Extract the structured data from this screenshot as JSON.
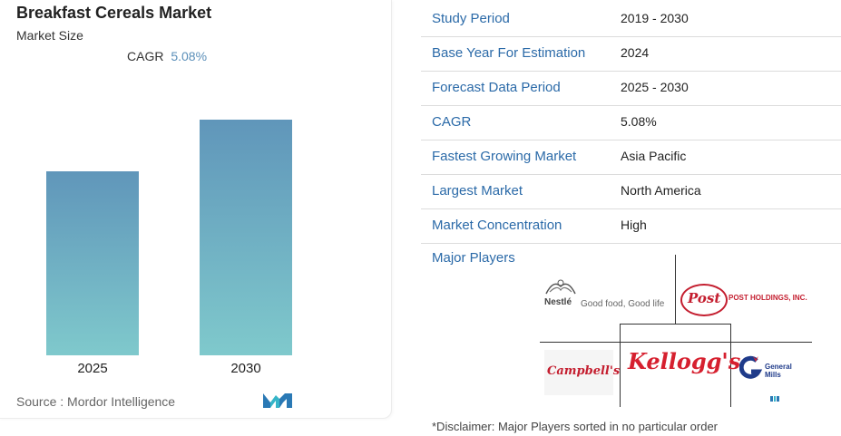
{
  "chart": {
    "title": "Breakfast Cereals Market",
    "subtitle": "Market Size",
    "cagr_label": "CAGR",
    "cagr_value": "5.08%",
    "source": "Source :  Mordor Intelligence"
  },
  "chart_data": {
    "type": "bar",
    "categories": [
      "2025",
      "2030"
    ],
    "values": [
      0.78,
      1.0
    ],
    "title": "Breakfast Cereals Market",
    "xlabel": "",
    "ylabel": "",
    "grid": false
  },
  "table": {
    "rows": [
      {
        "key": "Study Period",
        "value": "2019 - 2030"
      },
      {
        "key": "Base Year For Estimation",
        "value": "2024"
      },
      {
        "key": "Forecast Data Period",
        "value": "2025 - 2030"
      },
      {
        "key": "CAGR",
        "value": "5.08%"
      },
      {
        "key": "Fastest Growing Market",
        "value": "Asia Pacific"
      },
      {
        "key": "Largest Market",
        "value": "North America"
      },
      {
        "key": "Market Concentration",
        "value": "High"
      }
    ],
    "major_players": "Major Players",
    "disclaimer": "*Disclaimer: Major Players sorted in no particular order"
  },
  "players": {
    "nestle": "Nestlé",
    "nestle_tag": "Good food, Good life",
    "post": "Post",
    "post_holdings": "POST HOLDINGS, INC.",
    "campbells": "Campbell's",
    "kelloggs": "Kellogg's",
    "general_mills": "General Mills"
  },
  "colors": {
    "accent": "#2b6aa8",
    "bar_top": "#6096ba",
    "bar_bottom": "#7fc9cc",
    "kellogg_red": "#d6202f"
  }
}
